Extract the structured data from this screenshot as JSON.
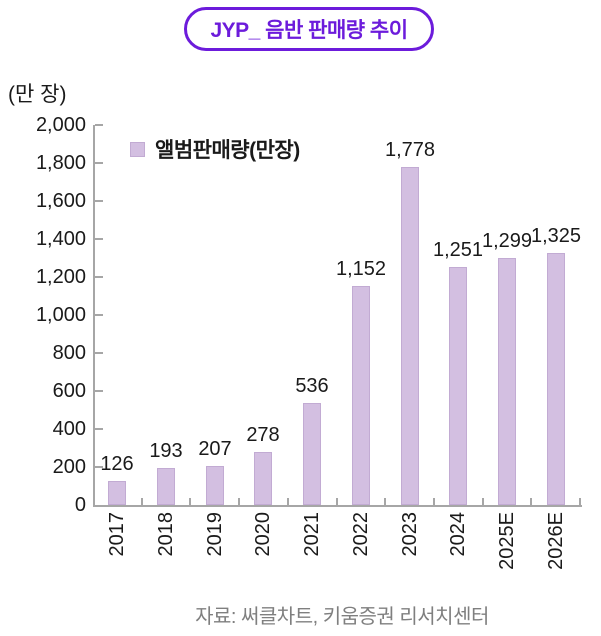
{
  "title": "JYP_ 음반 판매량 추이",
  "y_unit_label": "(만 장)",
  "legend": {
    "label": "앨범판매량(만장)"
  },
  "source": "자료: 써클차트, 키움증권 리서치센터",
  "colors": {
    "accent": "#6c1bdb",
    "bar_fill": "#d3bfe1",
    "bar_border": "#c2abd3",
    "axis": "#a6a6a6",
    "text": "#1a1a1a",
    "source_text": "#7f7f7f"
  },
  "chart_data": {
    "type": "bar",
    "title": "JYP_ 음반 판매량 추이",
    "categories": [
      "2017",
      "2018",
      "2019",
      "2020",
      "2021",
      "2022",
      "2023",
      "2024",
      "2025E",
      "2026E"
    ],
    "values": [
      126,
      193,
      207,
      278,
      536,
      1152,
      1778,
      1251,
      1299,
      1325
    ],
    "value_labels": [
      "126",
      "193",
      "207",
      "278",
      "536",
      "1,152",
      "1,778",
      "1,251",
      "1,299",
      "1,325"
    ],
    "series": [
      {
        "name": "앨범판매량(만장)",
        "values": [
          126,
          193,
          207,
          278,
          536,
          1152,
          1778,
          1251,
          1299,
          1325
        ]
      }
    ],
    "xlabel": "",
    "ylabel": "(만 장)",
    "ylim": [
      0,
      2000
    ],
    "ytick_interval": 200,
    "ytick_labels": [
      "0",
      "200",
      "400",
      "600",
      "800",
      "1,000",
      "1,200",
      "1,400",
      "1,600",
      "1,800",
      "2,000"
    ],
    "legend_entries": [
      "앨범판매량(만장)"
    ],
    "legend_position": "upper-left-inside",
    "grid": false,
    "bar_label_position": "above"
  }
}
